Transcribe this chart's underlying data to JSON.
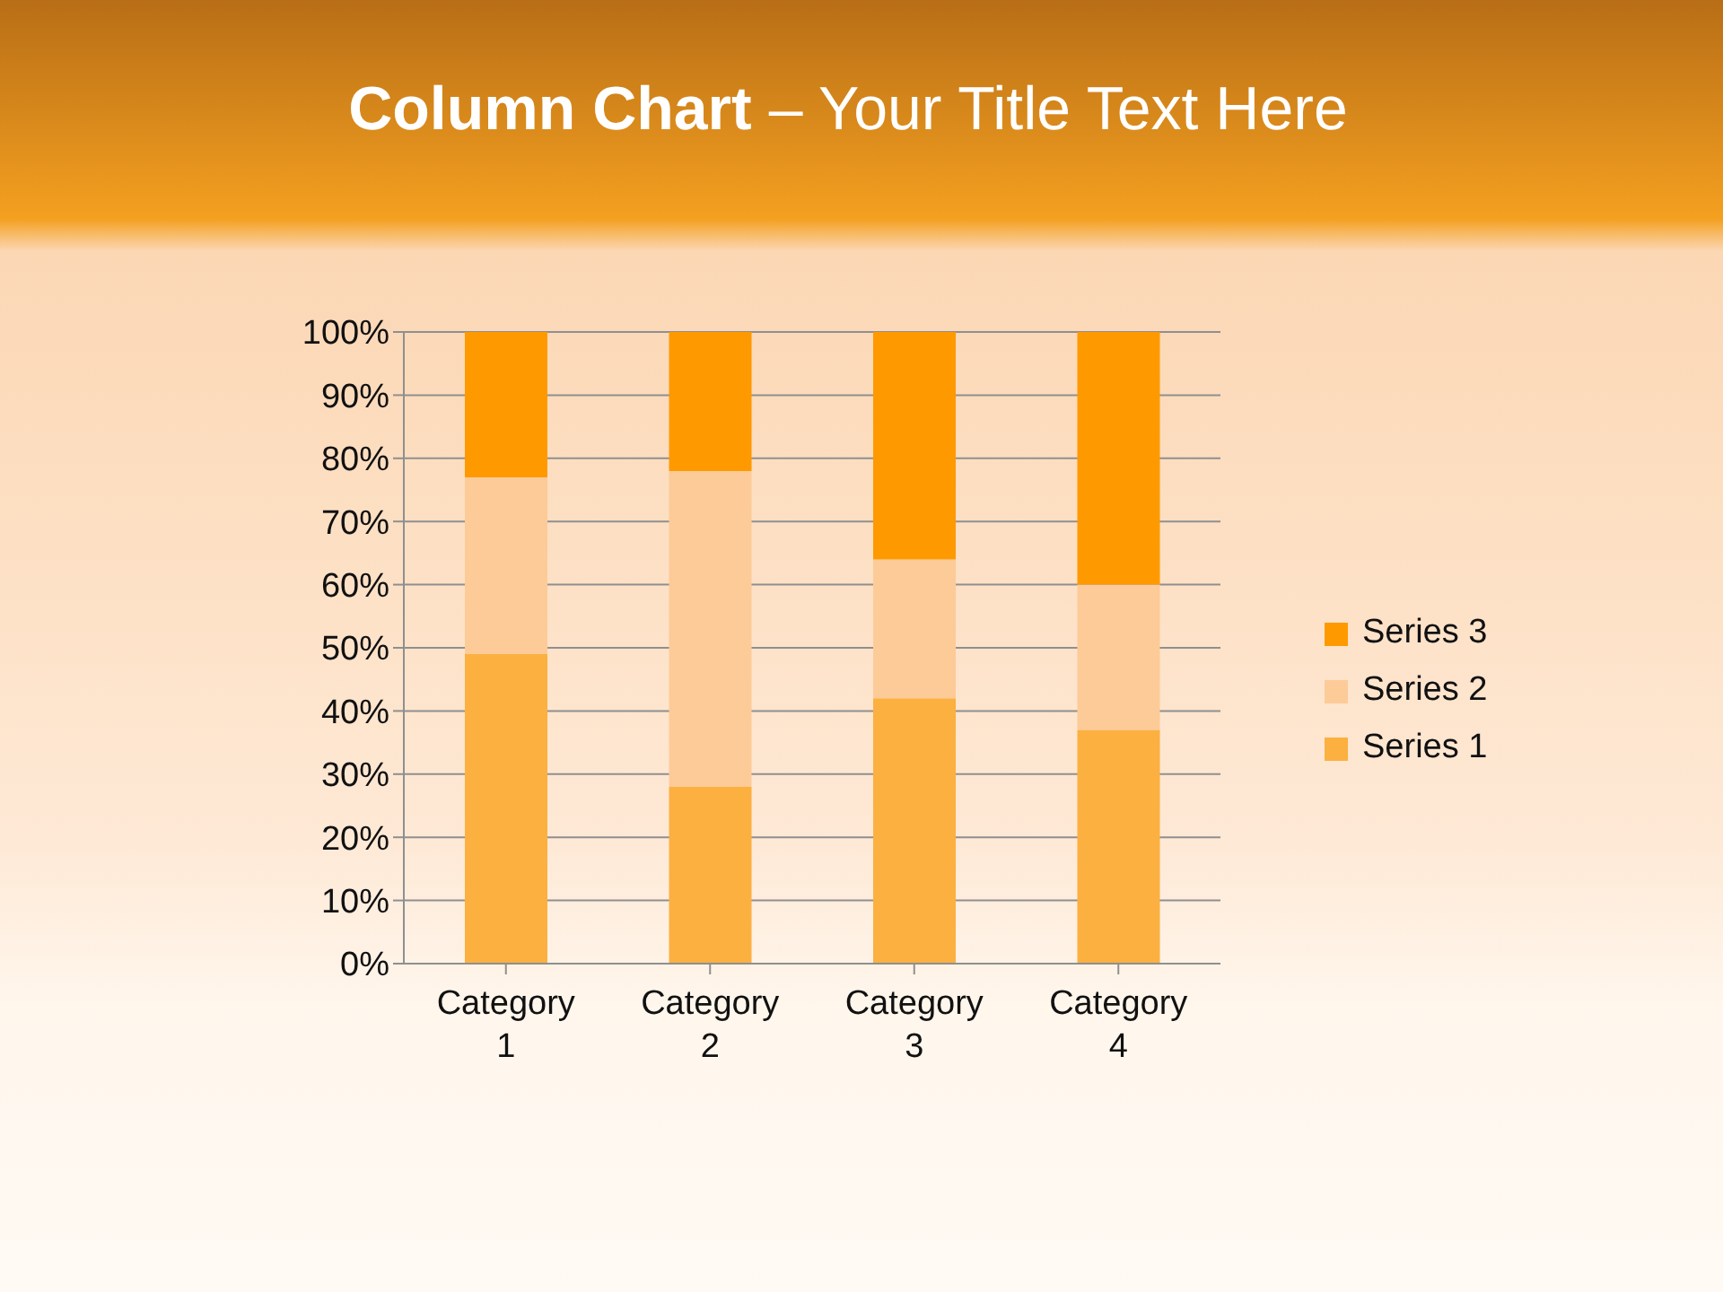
{
  "chart_data": {
    "type": "bar",
    "title": "Column Chart – Your Title Text Here",
    "categories": [
      "Category 1",
      "Category 2",
      "Category 3",
      "Category 4"
    ],
    "stacked": true,
    "series": [
      {
        "name": "Series 1",
        "color": "#fbb040",
        "values": [
          49,
          28,
          42,
          37
        ]
      },
      {
        "name": "Series 2",
        "color": "#fdcb98",
        "values": [
          28,
          50,
          22,
          23
        ]
      },
      {
        "name": "Series 3",
        "color": "#ff9900",
        "values": [
          23,
          22,
          36,
          40
        ]
      }
    ],
    "ylim": [
      0,
      100
    ],
    "yticks": [
      {
        "value": 0,
        "label": "0%"
      },
      {
        "value": 10,
        "label": "10%"
      },
      {
        "value": 20,
        "label": "20%"
      },
      {
        "value": 30,
        "label": "30%"
      },
      {
        "value": 40,
        "label": "40%"
      },
      {
        "value": 50,
        "label": "50%"
      },
      {
        "value": 60,
        "label": "60%"
      },
      {
        "value": 70,
        "label": "70%"
      },
      {
        "value": 80,
        "label": "80%"
      },
      {
        "value": 90,
        "label": "90%"
      },
      {
        "value": 100,
        "label": "100%"
      }
    ],
    "grid": "y",
    "legend": "right"
  }
}
